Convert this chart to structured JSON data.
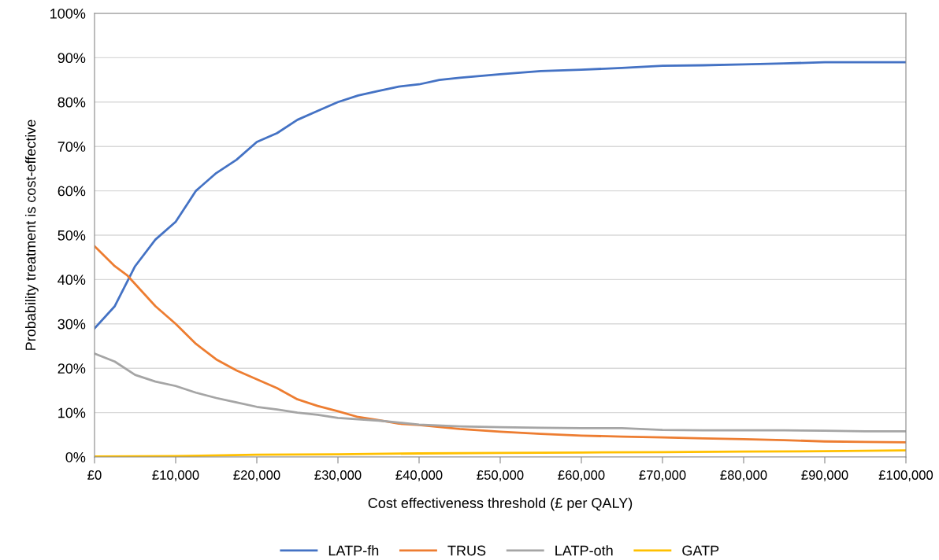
{
  "chart_data": {
    "type": "line",
    "xlabel": "Cost effectiveness threshold (£ per QALY)",
    "ylabel": "Probability treatment is cost-effective",
    "xlim": [
      0,
      100000
    ],
    "ylim": [
      0,
      100
    ],
    "xticks": [
      {
        "value": 0,
        "label": "£0"
      },
      {
        "value": 10000,
        "label": "£10,000"
      },
      {
        "value": 20000,
        "label": "£20,000"
      },
      {
        "value": 30000,
        "label": "£30,000"
      },
      {
        "value": 40000,
        "label": "£40,000"
      },
      {
        "value": 50000,
        "label": "£50,000"
      },
      {
        "value": 60000,
        "label": "£60,000"
      },
      {
        "value": 70000,
        "label": "£70,000"
      },
      {
        "value": 80000,
        "label": "£80,000"
      },
      {
        "value": 90000,
        "label": "£90,000"
      },
      {
        "value": 100000,
        "label": "£100,000"
      }
    ],
    "yticks": [
      {
        "value": 0,
        "label": "0%"
      },
      {
        "value": 10,
        "label": "10%"
      },
      {
        "value": 20,
        "label": "20%"
      },
      {
        "value": 30,
        "label": "30%"
      },
      {
        "value": 40,
        "label": "40%"
      },
      {
        "value": 50,
        "label": "50%"
      },
      {
        "value": 60,
        "label": "60%"
      },
      {
        "value": 70,
        "label": "70%"
      },
      {
        "value": 80,
        "label": "80%"
      },
      {
        "value": 90,
        "label": "90%"
      },
      {
        "value": 100,
        "label": "100%"
      }
    ],
    "grid": "y",
    "legend": "bottom",
    "marker": "none",
    "line_style": "solid",
    "series": [
      {
        "name": "LATP-fh",
        "color": "#4472c4",
        "x": [
          0,
          2500,
          5000,
          7500,
          10000,
          12500,
          15000,
          17500,
          20000,
          22500,
          25000,
          27500,
          30000,
          32500,
          35000,
          37500,
          40000,
          42500,
          45000,
          50000,
          55000,
          60000,
          65000,
          70000,
          75000,
          80000,
          85000,
          90000,
          95000,
          100000
        ],
        "values": [
          29,
          34,
          43,
          49,
          53,
          60,
          64,
          67,
          71,
          73,
          76,
          78,
          80,
          81.5,
          82.5,
          83.5,
          84,
          85,
          85.5,
          86.3,
          87,
          87.3,
          87.7,
          88.2,
          88.3,
          88.5,
          88.7,
          89,
          89,
          89
        ]
      },
      {
        "name": "TRUS",
        "color": "#ed7d31",
        "x": [
          0,
          2500,
          4000,
          5000,
          7500,
          10000,
          12500,
          15000,
          17500,
          20000,
          22500,
          25000,
          27500,
          30000,
          32500,
          35000,
          37500,
          40000,
          45000,
          50000,
          55000,
          60000,
          65000,
          70000,
          75000,
          80000,
          85000,
          90000,
          95000,
          100000
        ],
        "values": [
          47.5,
          43,
          41,
          39,
          34,
          30,
          25.5,
          22,
          19.5,
          17.5,
          15.5,
          13,
          11.5,
          10.3,
          9,
          8.3,
          7.5,
          7.2,
          6.3,
          5.7,
          5.2,
          4.8,
          4.6,
          4.4,
          4.2,
          4,
          3.8,
          3.5,
          3.4,
          3.3
        ]
      },
      {
        "name": "LATP-oth",
        "color": "#a5a5a5",
        "x": [
          0,
          2500,
          5000,
          7500,
          10000,
          12500,
          15000,
          17500,
          20000,
          22500,
          25000,
          27500,
          30000,
          35000,
          40000,
          45000,
          50000,
          55000,
          60000,
          65000,
          70000,
          75000,
          80000,
          85000,
          90000,
          95000,
          100000
        ],
        "values": [
          23.3,
          21.5,
          18.5,
          17,
          16,
          14.5,
          13.3,
          12.3,
          11.3,
          10.7,
          10,
          9.5,
          8.8,
          8.2,
          7.3,
          6.9,
          6.7,
          6.6,
          6.5,
          6.5,
          6.1,
          6,
          6,
          6,
          5.9,
          5.8,
          5.8
        ]
      },
      {
        "name": "GATP",
        "color": "#ffc000",
        "x": [
          0,
          10000,
          20000,
          30000,
          40000,
          50000,
          60000,
          70000,
          80000,
          90000,
          100000
        ],
        "values": [
          0.1,
          0.2,
          0.5,
          0.6,
          0.8,
          0.9,
          1.0,
          1.1,
          1.2,
          1.3,
          1.5
        ]
      }
    ]
  }
}
